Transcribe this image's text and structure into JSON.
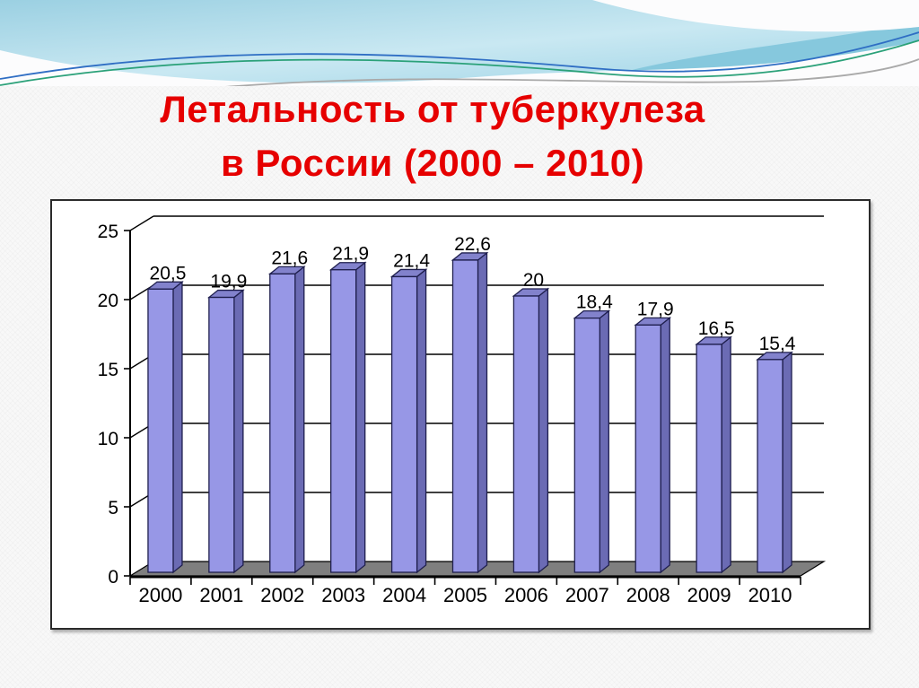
{
  "slide": {
    "title_line1": "Летальность от туберкулеза",
    "title_line2": "в России (2000 – 2010)",
    "title_color": "#e60000"
  },
  "chart_data": {
    "type": "bar",
    "style": "3d-column",
    "title": "Летальность от туберкулеза в России (2000 – 2010)",
    "xlabel": "",
    "ylabel": "",
    "categories": [
      "2000",
      "2001",
      "2002",
      "2003",
      "2004",
      "2005",
      "2006",
      "2007",
      "2008",
      "2009",
      "2010"
    ],
    "values": [
      20.5,
      19.9,
      21.6,
      21.9,
      21.4,
      22.6,
      20,
      18.4,
      17.9,
      16.5,
      15.4
    ],
    "value_labels": [
      "20,5",
      "19,9",
      "21,6",
      "21,9",
      "21,4",
      "22,6",
      "20",
      "18,4",
      "17,9",
      "16,5",
      "15,4"
    ],
    "y_ticks": [
      0,
      5,
      10,
      15,
      20,
      25
    ],
    "ylim": [
      0,
      25
    ],
    "grid": true,
    "legend_position": "none",
    "colors": {
      "bar_front": "#9797e6",
      "bar_top": "#8282cc",
      "bar_side": "#6b6bb4",
      "bar_outline": "#1f1f4e",
      "floor": "#7f7f7f",
      "floor_outline": "#000000",
      "gridline": "#000000",
      "axis": "#000000",
      "label": "#000000"
    }
  },
  "banner": {
    "icon": "wave-decoration",
    "sky_top": "#9bd0e2",
    "sky_light": "#c9e8f2",
    "wave_blue": "#86c8dd",
    "line_blue": "#2f6ec4",
    "line_green": "#2ba179",
    "line_gray": "#a9a9a9",
    "white": "#fcfcfd"
  }
}
